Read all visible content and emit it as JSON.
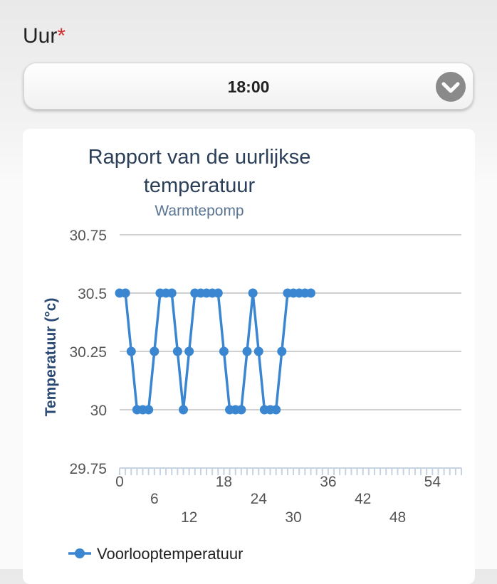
{
  "form": {
    "label": "Uur",
    "required_mark": "*",
    "selected_value": "18:00",
    "chevron_icon": "chevron-down-icon"
  },
  "chart_data": {
    "type": "line",
    "title": "Rapport van de uurlijkse temperatuur",
    "subtitle": "Warmtepomp",
    "ylabel": "Temperatuur (°c)",
    "xlabel": "",
    "ylim": [
      29.75,
      30.75
    ],
    "yticks": [
      "29.75",
      "30",
      "30.25",
      "30.5",
      "30.75"
    ],
    "xlim": [
      0,
      59
    ],
    "xticks": [
      "0",
      "6",
      "12",
      "18",
      "24",
      "30",
      "36",
      "42",
      "48",
      "54"
    ],
    "grid": true,
    "legend_position": "bottom",
    "series": [
      {
        "name": "Voorlooptemperatuur",
        "color": "#3a86d1",
        "x": [
          0,
          1,
          2,
          3,
          4,
          5,
          6,
          7,
          8,
          9,
          10,
          11,
          12,
          13,
          14,
          15,
          16,
          17,
          18,
          19,
          20,
          21,
          22,
          23,
          24,
          25,
          26,
          27,
          28,
          29,
          30,
          31,
          32,
          33
        ],
        "values": [
          30.5,
          30.5,
          30.25,
          30,
          30,
          30,
          30.25,
          30.5,
          30.5,
          30.5,
          30.25,
          30,
          30.25,
          30.5,
          30.5,
          30.5,
          30.5,
          30.5,
          30.25,
          30,
          30,
          30,
          30.25,
          30.5,
          30.25,
          30,
          30,
          30,
          30.25,
          30.5,
          30.5,
          30.5,
          30.5,
          30.5
        ]
      }
    ]
  }
}
